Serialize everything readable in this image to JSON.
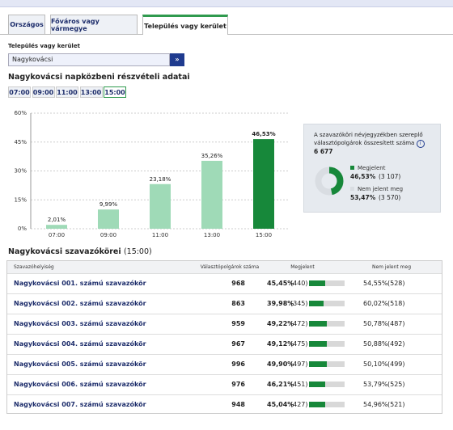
{
  "tabs": [
    "Országos",
    "Főváros vagy vármegye",
    "Település vagy kerület"
  ],
  "active_tab": 2,
  "selector": {
    "label": "Település vagy kerület",
    "value": "Nagykovácsi",
    "button": "»"
  },
  "section_title": "Nagykovácsi napközbeni részvételi adatai",
  "time_buttons": [
    "07:00",
    "09:00",
    "11:00",
    "13:00",
    "15:00"
  ],
  "active_time": 4,
  "chart_data": {
    "type": "bar",
    "categories": [
      "07:00",
      "09:00",
      "11:00",
      "13:00",
      "15:00"
    ],
    "values": [
      2.01,
      9.99,
      23.18,
      35.26,
      46.53
    ],
    "value_labels": [
      "2,01%",
      "9,99%",
      "23,18%",
      "35,26%",
      "46,53%"
    ],
    "colors": [
      "#9fdab7",
      "#9fdab7",
      "#9fdab7",
      "#9fdab7",
      "#17883a"
    ],
    "ylim": [
      0,
      60
    ],
    "yticks": [
      {
        "value": 0,
        "label": "0%"
      },
      {
        "value": 15,
        "label": "15%"
      },
      {
        "value": 30,
        "label": "30%"
      },
      {
        "value": 45,
        "label": "45%"
      },
      {
        "value": 60,
        "label": "60%"
      }
    ],
    "grid": true
  },
  "summary": {
    "note": "A szavazóköri névjegyzékben szereplő választópolgárok összesített száma",
    "total": "6 677",
    "items": [
      {
        "name": "Megjelent",
        "value": 46.53,
        "value_label": "46,53%",
        "count": "(3 107)",
        "color": "#17883a"
      },
      {
        "name": "Nem jelent meg",
        "value": 53.47,
        "value_label": "53,47%",
        "count": "(3 570)",
        "color": "#d9dde2"
      }
    ]
  },
  "table": {
    "title": "Nagykovácsi szavazókörei",
    "subtitle": "(15:00)",
    "headers": [
      "Szavazóhelyiség",
      "Választópolgárok száma",
      "Megjelent",
      "Nem jelent meg"
    ],
    "rows": [
      {
        "name": "Nagykovácsi 001. számú szavazókör",
        "voters": "968",
        "turnout": 45.45,
        "turnout_label": "45,45%",
        "turnout_count": "(440)",
        "absent_label": "54,55%",
        "absent_count": "(528)"
      },
      {
        "name": "Nagykovácsi 002. számú szavazókör",
        "voters": "863",
        "turnout": 39.98,
        "turnout_label": "39,98%",
        "turnout_count": "(345)",
        "absent_label": "60,02%",
        "absent_count": "(518)"
      },
      {
        "name": "Nagykovácsi 003. számú szavazókör",
        "voters": "959",
        "turnout": 49.22,
        "turnout_label": "49,22%",
        "turnout_count": "(472)",
        "absent_label": "50,78%",
        "absent_count": "(487)"
      },
      {
        "name": "Nagykovácsi 004. számú szavazókör",
        "voters": "967",
        "turnout": 49.12,
        "turnout_label": "49,12%",
        "turnout_count": "(475)",
        "absent_label": "50,88%",
        "absent_count": "(492)"
      },
      {
        "name": "Nagykovácsi 005. számú szavazókör",
        "voters": "996",
        "turnout": 49.9,
        "turnout_label": "49,90%",
        "turnout_count": "(497)",
        "absent_label": "50,10%",
        "absent_count": "(499)"
      },
      {
        "name": "Nagykovácsi 006. számú szavazókör",
        "voters": "976",
        "turnout": 46.21,
        "turnout_label": "46,21%",
        "turnout_count": "(451)",
        "absent_label": "53,79%",
        "absent_count": "(525)"
      },
      {
        "name": "Nagykovácsi 007. számú szavazókör",
        "voters": "948",
        "turnout": 45.04,
        "turnout_label": "45,04%",
        "turnout_count": "(427)",
        "absent_label": "54,96%",
        "absent_count": "(521)"
      }
    ]
  }
}
